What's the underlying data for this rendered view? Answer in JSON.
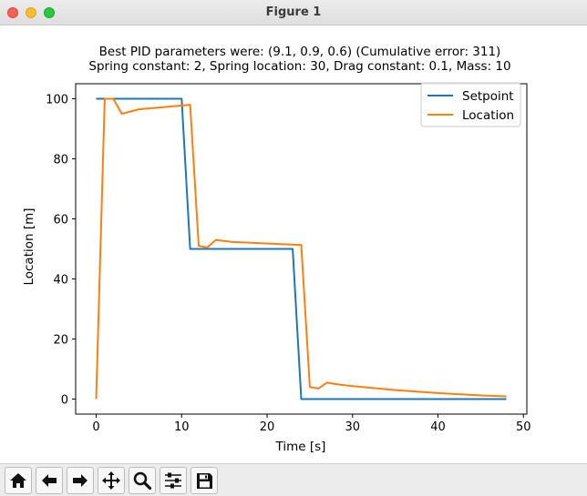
{
  "window": {
    "title": "Figure 1"
  },
  "toolbar": {
    "buttons": [
      {
        "name": "home-button",
        "icon": "home-icon"
      },
      {
        "name": "back-button",
        "icon": "arrow-left-icon"
      },
      {
        "name": "forward-button",
        "icon": "arrow-right-icon"
      },
      {
        "name": "pan-button",
        "icon": "move-icon"
      },
      {
        "name": "zoom-button",
        "icon": "magnifier-icon"
      },
      {
        "name": "configure-subplots-button",
        "icon": "sliders-icon"
      },
      {
        "name": "save-button",
        "icon": "floppy-disk-icon"
      }
    ]
  },
  "chart_data": {
    "type": "line",
    "title": "Best PID parameters were: (9.1, 0.9, 0.6) (Cumulative error: 311)",
    "subtitle": "Spring constant: 2, Spring location: 30, Drag constant: 0.1, Mass: 10",
    "xlabel": "Time [s]",
    "ylabel": "Location [m]",
    "xlim": [
      -2.4,
      50.4
    ],
    "ylim": [
      -5,
      105
    ],
    "xticks": [
      0,
      10,
      20,
      30,
      40,
      50
    ],
    "yticks": [
      0,
      20,
      40,
      60,
      80,
      100
    ],
    "legend": "top-right",
    "grid": false,
    "series": [
      {
        "name": "Setpoint",
        "color": "#1f77b4",
        "x": [
          0,
          10,
          11,
          23,
          24,
          48
        ],
        "y": [
          100,
          100,
          50,
          50,
          0,
          0
        ]
      },
      {
        "name": "Location",
        "color": "#ff7f0e",
        "x": [
          0,
          1,
          2,
          3,
          5,
          11,
          12,
          13,
          14,
          16,
          24,
          25,
          26,
          27,
          28,
          30,
          35,
          40,
          45,
          48
        ],
        "y": [
          0,
          100,
          100,
          95,
          96.5,
          98,
          51,
          50.5,
          53,
          52.3,
          51.3,
          4,
          3.5,
          5.5,
          5,
          4.3,
          3,
          2,
          1.2,
          0.9
        ]
      }
    ]
  }
}
